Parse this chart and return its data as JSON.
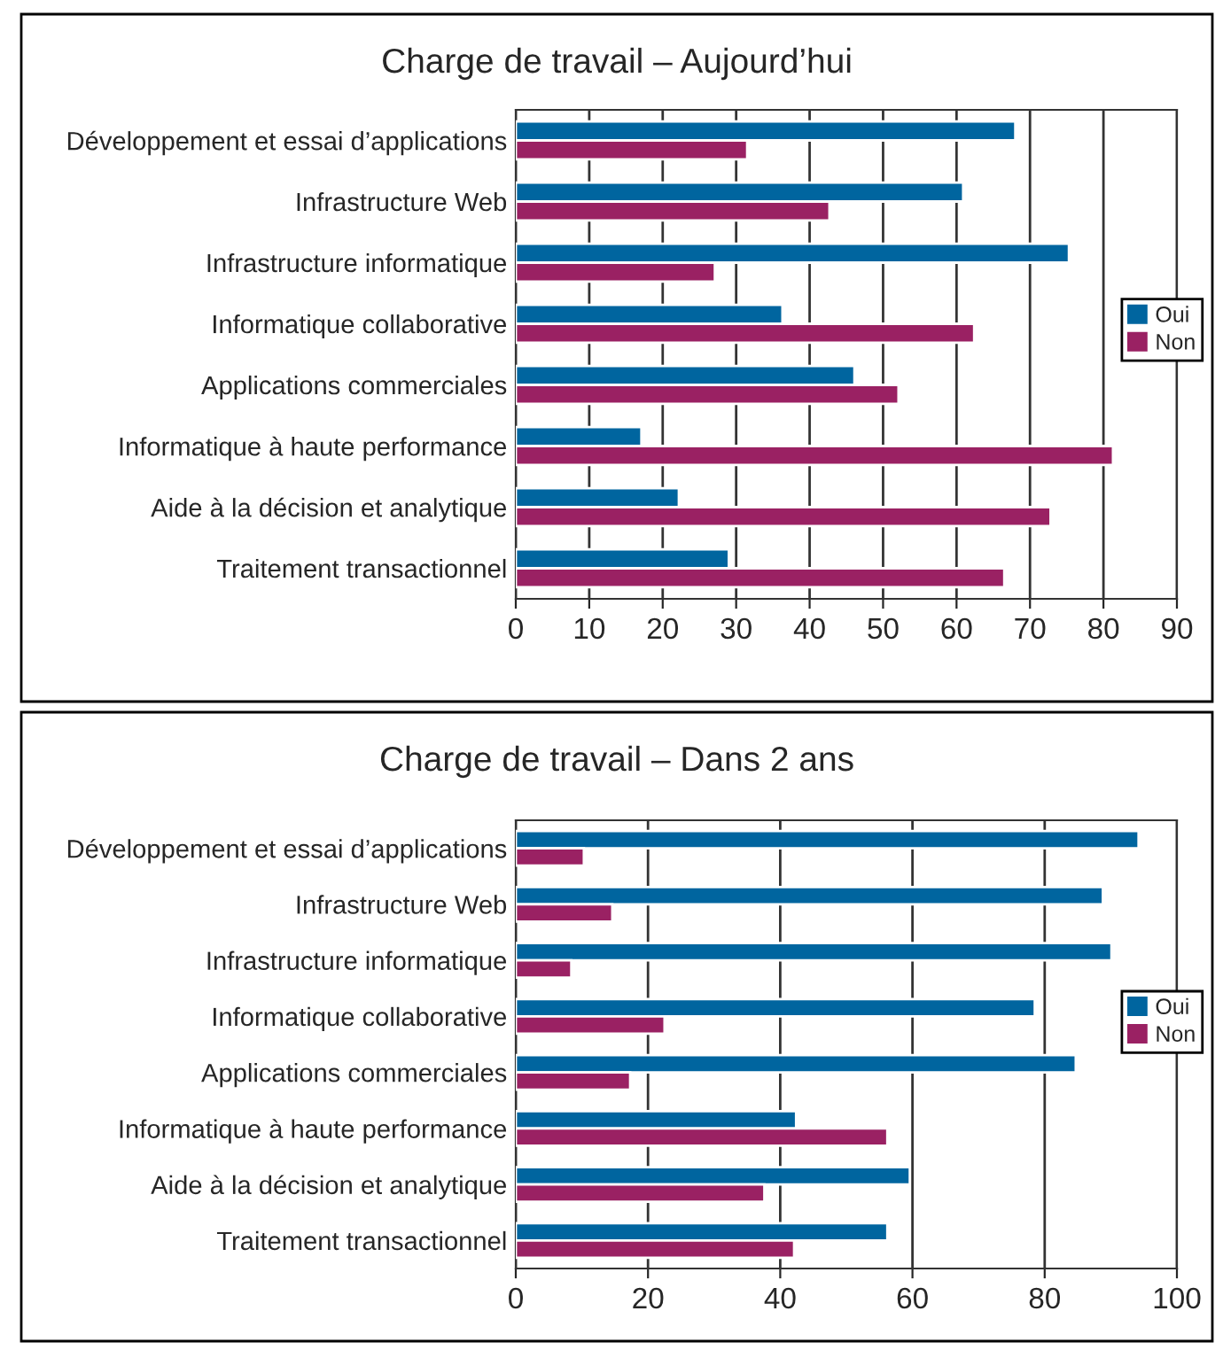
{
  "chart_data": [
    {
      "type": "bar",
      "orientation": "horizontal",
      "title": "Charge de travail – Aujourd’hui",
      "categories": [
        "Développement et essai d’applications",
        "Infrastructure Web",
        "Infrastructure informatique",
        "Informatique collaborative",
        "Applications commerciales",
        "Informatique à haute performance",
        "Aide à la décision et analytique",
        "Traitement transactionnel"
      ],
      "series": [
        {
          "name": "Oui",
          "color": "#00659f",
          "values": [
            68.0,
            60.9,
            75.3,
            36.3,
            46.1,
            17.1,
            22.2,
            29.0
          ]
        },
        {
          "name": "Non",
          "color": "#9a2163",
          "values": [
            31.5,
            42.7,
            27.1,
            62.4,
            52.1,
            81.3,
            72.8,
            66.5
          ]
        }
      ],
      "xlim": [
        0,
        90
      ],
      "xticks": [
        0,
        10,
        20,
        30,
        40,
        50,
        60,
        70,
        80,
        90
      ],
      "grid": "x",
      "legend": "right"
    },
    {
      "type": "bar",
      "orientation": "horizontal",
      "title": "Charge de travail – Dans 2 ans",
      "categories": [
        "Développement et essai d’applications",
        "Infrastructure Web",
        "Infrastructure informatique",
        "Informatique collaborative",
        "Applications commerciales",
        "Informatique à haute performance",
        "Aide à la décision et analytique",
        "Traitement transactionnel"
      ],
      "series": [
        {
          "name": "Oui",
          "color": "#00659f",
          "values": [
            94.2,
            88.8,
            90.1,
            78.5,
            84.7,
            42.4,
            59.6,
            56.2
          ]
        },
        {
          "name": "Non",
          "color": "#9a2163",
          "values": [
            10.3,
            14.6,
            8.4,
            22.5,
            17.3,
            56.2,
            37.6,
            42.1
          ]
        }
      ],
      "xlim": [
        0,
        100
      ],
      "xticks": [
        0,
        20,
        40,
        60,
        80,
        100
      ],
      "grid": "x",
      "legend": "right"
    }
  ]
}
